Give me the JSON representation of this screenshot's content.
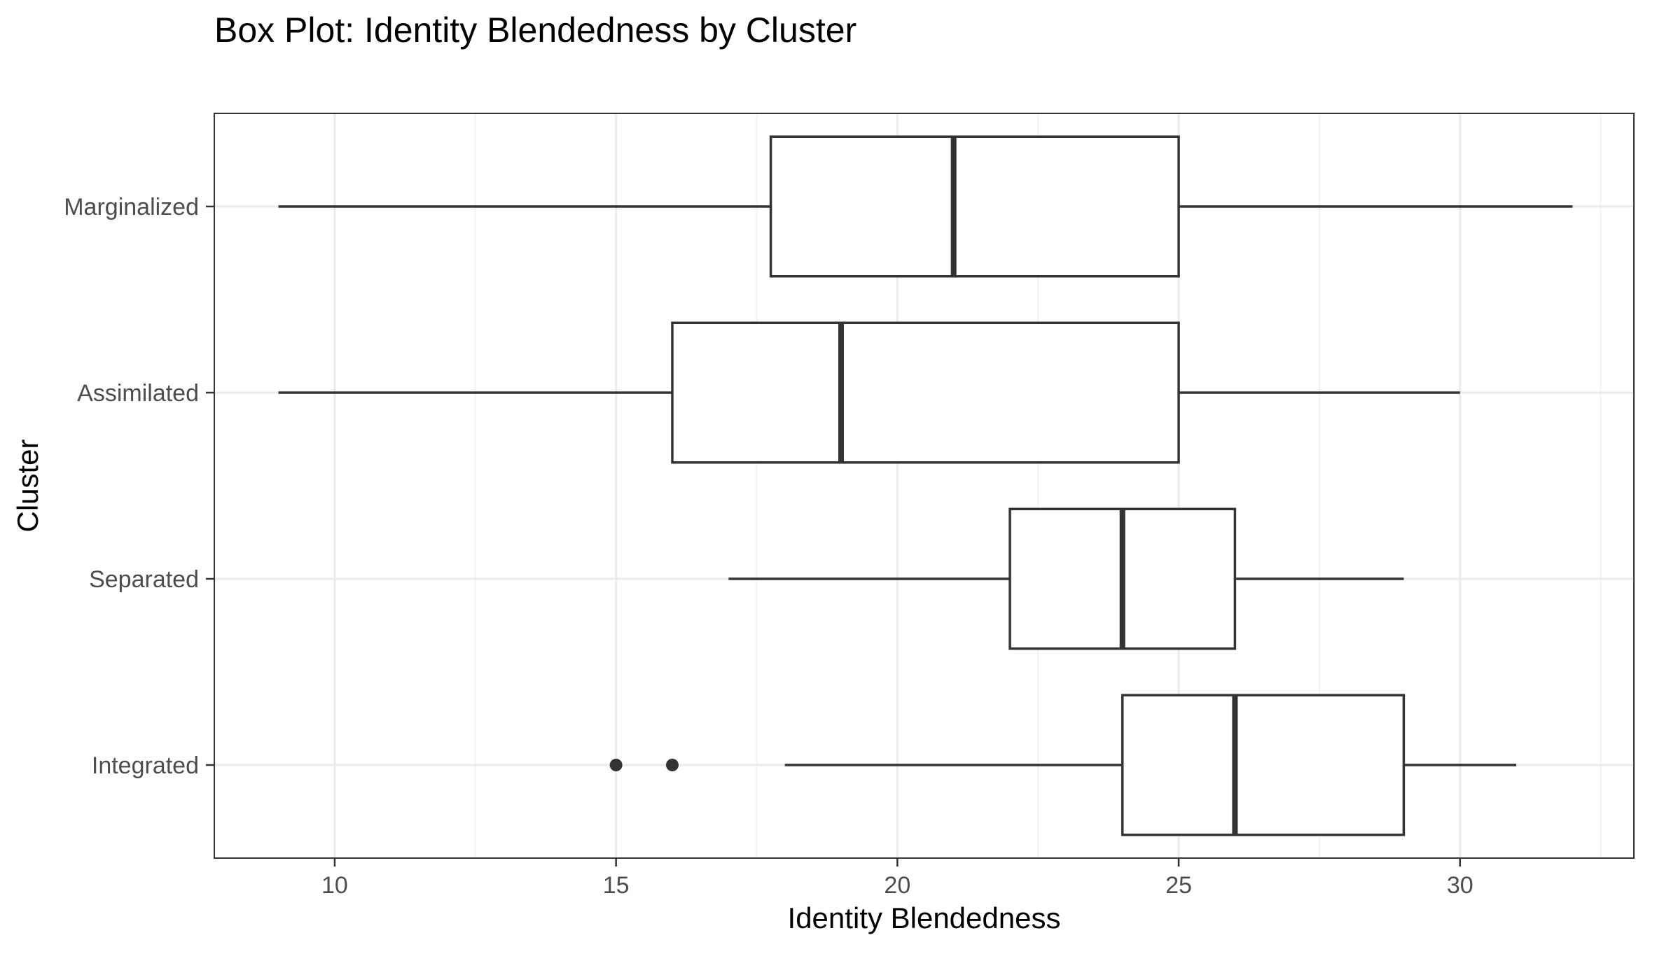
{
  "chart_data": {
    "type": "boxplot",
    "orientation": "horizontal",
    "title": "Box Plot: Identity Blendedness by Cluster",
    "xlabel": "Identity Blendedness",
    "ylabel": "Cluster",
    "xlim": [
      7.86,
      33.09
    ],
    "x_ticks": [
      10,
      15,
      20,
      25,
      30
    ],
    "x_tick_labels": [
      "10",
      "15",
      "20",
      "25",
      "30"
    ],
    "categories": [
      "Marginalized",
      "Assimilated",
      "Separated",
      "Integrated"
    ],
    "boxes": [
      {
        "category": "Marginalized",
        "whisker_low": 9,
        "q1": 17.75,
        "median": 21,
        "q3": 25,
        "whisker_high": 32,
        "outliers": []
      },
      {
        "category": "Assimilated",
        "whisker_low": 9,
        "q1": 16,
        "median": 19,
        "q3": 25,
        "whisker_high": 30,
        "outliers": []
      },
      {
        "category": "Separated",
        "whisker_low": 17,
        "q1": 22,
        "median": 24,
        "q3": 26,
        "whisker_high": 29,
        "outliers": []
      },
      {
        "category": "Integrated",
        "whisker_low": 18,
        "q1": 24,
        "median": 26,
        "q3": 29,
        "whisker_high": 31,
        "outliers": [
          15,
          16
        ]
      }
    ],
    "grid": true,
    "theme": "bw",
    "colors": {
      "box_stroke": "#333333",
      "grid_major": "#ebebeb",
      "grid_minor": "#f3f3f3",
      "panel_border": "#333333",
      "tick_label": "#4d4d4d"
    }
  }
}
